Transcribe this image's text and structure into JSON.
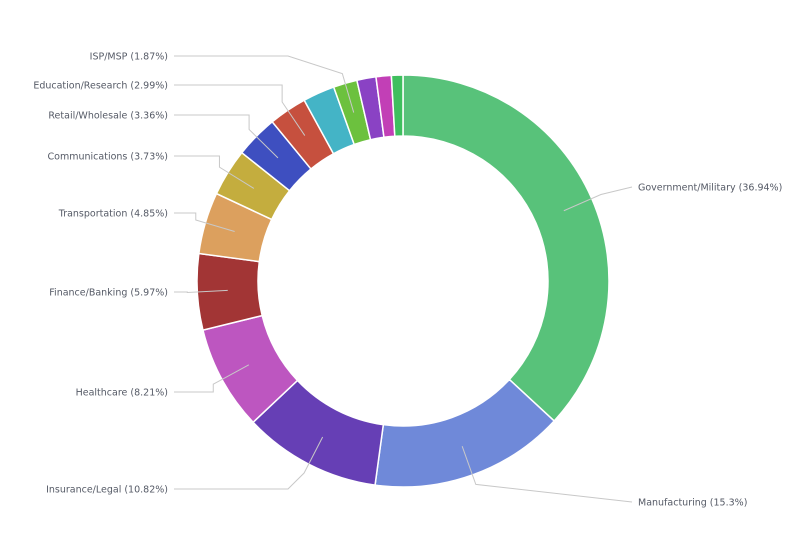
{
  "chart_data": {
    "type": "pie",
    "style": "donut",
    "title": "",
    "slices": [
      {
        "label": "Government/Military (36.94%)",
        "value": 36.94,
        "color": "#58c27a"
      },
      {
        "label": "Manufacturing (15.3%)",
        "value": 15.3,
        "color": "#6f89d9"
      },
      {
        "label": "Insurance/Legal (10.82%)",
        "value": 10.82,
        "color": "#663fb5"
      },
      {
        "label": "Healthcare (8.21%)",
        "value": 8.21,
        "color": "#bd56c0"
      },
      {
        "label": "Finance/Banking (5.97%)",
        "value": 5.97,
        "color": "#a23535"
      },
      {
        "label": "Transportation (4.85%)",
        "value": 4.85,
        "color": "#dca05e"
      },
      {
        "label": "Communications (3.73%)",
        "value": 3.73,
        "color": "#c4ad3e"
      },
      {
        "label": "Retail/Wholesale (3.36%)",
        "value": 3.36,
        "color": "#3e4fc0"
      },
      {
        "label": "Education/Research (2.99%)",
        "value": 2.99,
        "color": "#c6503e"
      },
      {
        "label": "",
        "value": 2.5,
        "color": "#44b4c6"
      },
      {
        "label": "ISP/MSP (1.87%)",
        "value": 1.87,
        "color": "#6cc13e"
      },
      {
        "label": "",
        "value": 1.5,
        "color": "#8a42c4"
      },
      {
        "label": "",
        "value": 1.2,
        "color": "#c23fb6"
      },
      {
        "label": "",
        "value": 0.9,
        "color": "#3fbf5e"
      }
    ]
  }
}
